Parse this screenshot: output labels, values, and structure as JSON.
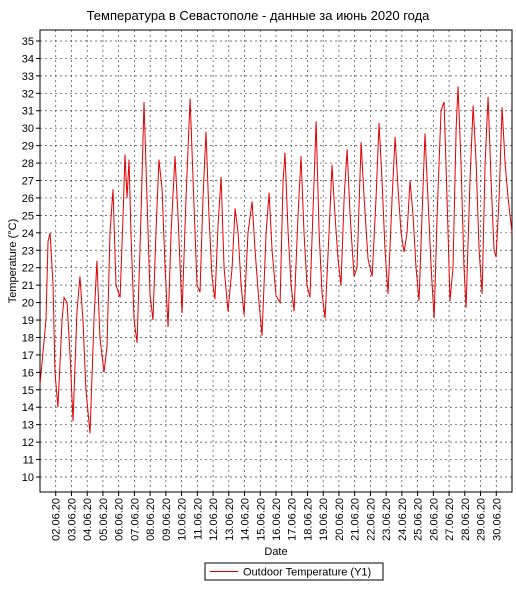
{
  "chart_data": {
    "type": "line",
    "title": "Температура в Севастополе - данные за июнь 2020 года",
    "x_label": "Date",
    "y_label": "Temperature (°C)",
    "xlim": [
      1,
      31
    ],
    "ylim": [
      9.14,
      35.63
    ],
    "xticks": [
      {
        "value": 2,
        "label": "02.06.20"
      },
      {
        "value": 3,
        "label": "03.06.20"
      },
      {
        "value": 4,
        "label": "04.06.20"
      },
      {
        "value": 5,
        "label": "05.06.20"
      },
      {
        "value": 6,
        "label": "06.06.20"
      },
      {
        "value": 7,
        "label": "07.06.20"
      },
      {
        "value": 8,
        "label": "08.06.20"
      },
      {
        "value": 9,
        "label": "09.06.20"
      },
      {
        "value": 10,
        "label": "10.06.20"
      },
      {
        "value": 11,
        "label": "11.06.20"
      },
      {
        "value": 12,
        "label": "12.06.20"
      },
      {
        "value": 13,
        "label": "13.06.20"
      },
      {
        "value": 14,
        "label": "14.06.20"
      },
      {
        "value": 15,
        "label": "15.06.20"
      },
      {
        "value": 16,
        "label": "16.06.20"
      },
      {
        "value": 17,
        "label": "17.06.20"
      },
      {
        "value": 18,
        "label": "18.06.20"
      },
      {
        "value": 19,
        "label": "19.06.20"
      },
      {
        "value": 20,
        "label": "20.06.20"
      },
      {
        "value": 21,
        "label": "21.06.20"
      },
      {
        "value": 22,
        "label": "22.06.20"
      },
      {
        "value": 23,
        "label": "23.06.20"
      },
      {
        "value": 24,
        "label": "24.06.20"
      },
      {
        "value": 25,
        "label": "25.06.20"
      },
      {
        "value": 26,
        "label": "26.06.20"
      },
      {
        "value": 27,
        "label": "27.06.20"
      },
      {
        "value": 28,
        "label": "28.06.20"
      },
      {
        "value": 29,
        "label": "29.06.20"
      },
      {
        "value": 30,
        "label": "30.06.20"
      }
    ],
    "yticks": [
      10,
      11,
      12,
      13,
      14,
      15,
      16,
      17,
      18,
      19,
      20,
      21,
      22,
      23,
      24,
      25,
      26,
      27,
      28,
      29,
      30,
      31,
      32,
      33,
      34,
      35
    ],
    "grid": true,
    "x": [
      1.0,
      1.38,
      1.51,
      1.64,
      1.83,
      1.95,
      2.14,
      2.4,
      2.53,
      2.72,
      2.91,
      3.1,
      3.35,
      3.54,
      3.73,
      3.92,
      4.18,
      4.43,
      4.62,
      4.81,
      5.07,
      5.26,
      5.45,
      5.64,
      5.83,
      6.09,
      6.28,
      6.4,
      6.53,
      6.66,
      6.78,
      6.98,
      7.17,
      7.42,
      7.61,
      7.8,
      7.99,
      8.18,
      8.37,
      8.56,
      8.76,
      8.95,
      9.14,
      9.33,
      9.58,
      9.77,
      10.03,
      10.28,
      10.54,
      10.73,
      10.98,
      11.17,
      11.36,
      11.55,
      11.74,
      11.93,
      12.12,
      12.32,
      12.51,
      12.7,
      12.95,
      13.21,
      13.4,
      13.59,
      13.78,
      13.97,
      14.22,
      14.48,
      14.67,
      14.92,
      15.11,
      15.37,
      15.56,
      15.75,
      16.0,
      16.26,
      16.45,
      16.57,
      16.77,
      16.96,
      17.15,
      17.4,
      17.59,
      17.78,
      17.97,
      18.16,
      18.42,
      18.55,
      18.74,
      18.93,
      19.12,
      19.37,
      19.56,
      19.75,
      19.94,
      20.13,
      20.33,
      20.52,
      20.71,
      20.96,
      21.15,
      21.41,
      21.6,
      21.85,
      22.11,
      22.36,
      22.55,
      22.74,
      22.93,
      23.12,
      23.38,
      23.57,
      23.76,
      23.95,
      24.14,
      24.33,
      24.52,
      24.71,
      24.9,
      25.09,
      25.28,
      25.47,
      25.66,
      25.86,
      26.05,
      26.24,
      26.49,
      26.68,
      26.87,
      27.06,
      27.25,
      27.45,
      27.57,
      27.76,
      27.95,
      28.08,
      28.33,
      28.53,
      28.72,
      28.91,
      29.1,
      29.29,
      29.48,
      29.67,
      29.86,
      29.99,
      30.18,
      30.37,
      30.56,
      30.75,
      31.0
    ],
    "series": [
      {
        "name": "Outdoor Temperature (Y1)",
        "color": "#e00000",
        "values": [
          15.3,
          19,
          23.5,
          24,
          21,
          16,
          14,
          19,
          20.3,
          20,
          17,
          13.2,
          19.5,
          21.5,
          19,
          15,
          12.5,
          19,
          22.4,
          18,
          16,
          17.5,
          24,
          26.5,
          21,
          20.3,
          25,
          28.5,
          26,
          28.2,
          24,
          19,
          17.7,
          25,
          31.5,
          26,
          20.5,
          19,
          24,
          28.2,
          26.5,
          22,
          18.6,
          24,
          28.4,
          25,
          19.4,
          26,
          31.7,
          27,
          21,
          20.6,
          26,
          29.8,
          25,
          21.5,
          20.2,
          24.5,
          27.2,
          22,
          19.5,
          22,
          25.4,
          24,
          21,
          19.3,
          24,
          25.8,
          23,
          20,
          18.1,
          24,
          26.3,
          23,
          20.4,
          20,
          27,
          28.6,
          24,
          21,
          19.5,
          25,
          28.4,
          24,
          21,
          20.3,
          27,
          30.4,
          24,
          20.5,
          19.1,
          24,
          27.9,
          25,
          22.5,
          21,
          26,
          28.8,
          25,
          21.5,
          22,
          29.2,
          26,
          22.5,
          21.5,
          26,
          30.3,
          27,
          23,
          20.5,
          26,
          29.5,
          26.5,
          24,
          22.9,
          24,
          27,
          25,
          22,
          20.1,
          25,
          29.7,
          26,
          22,
          19.1,
          25,
          31,
          31.5,
          26,
          20.1,
          22,
          30,
          32.4,
          28,
          22,
          19.7,
          27,
          31.3,
          28,
          23,
          20.5,
          28,
          31.8,
          27,
          23,
          22.6,
          26,
          31.2,
          28,
          26,
          24
        ]
      }
    ]
  }
}
